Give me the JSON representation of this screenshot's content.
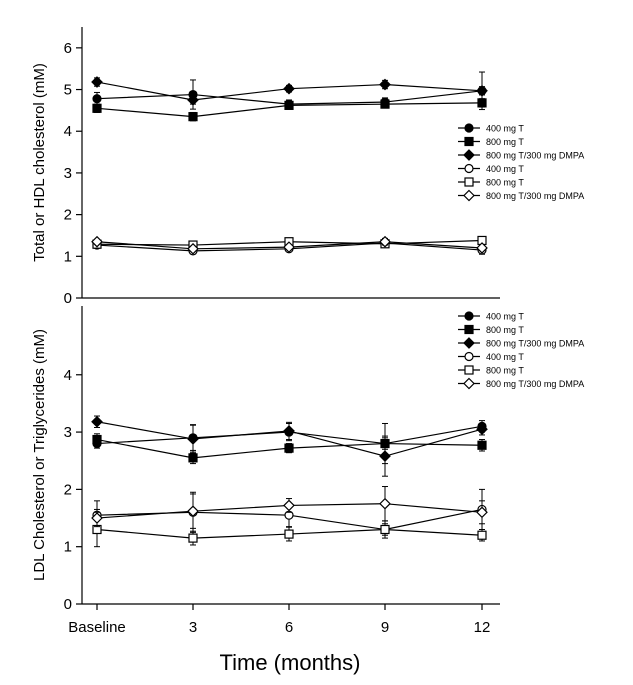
{
  "chart_data": [
    {
      "type": "line",
      "panel": "top",
      "ylabel": "Total or HDL cholesterol (mM)",
      "xlabel": "",
      "ylim": [
        0,
        6.5
      ],
      "y_ticks": [
        0,
        1,
        2,
        3,
        4,
        5,
        6
      ],
      "categories": [
        "Baseline",
        "3",
        "6",
        "9",
        "12"
      ],
      "series": [
        {
          "name": "400  mg T",
          "marker": "circle",
          "fill": "filled",
          "values": [
            4.78,
            4.88,
            4.65,
            4.7,
            4.97
          ],
          "errors": [
            0.15,
            0.35,
            0.1,
            0.1,
            0.45
          ]
        },
        {
          "name": "800 mg T",
          "marker": "square",
          "fill": "filled",
          "values": [
            4.55,
            4.35,
            4.62,
            4.65,
            4.68
          ],
          "errors": [
            0.1,
            0.1,
            0.08,
            0.08,
            0.1
          ]
        },
        {
          "name": "800 mg T/300 mg DMPA",
          "marker": "diamond",
          "fill": "filled",
          "values": [
            5.18,
            4.75,
            5.02,
            5.12,
            4.97
          ],
          "errors": [
            0.1,
            0.1,
            0.08,
            0.1,
            0.1
          ]
        },
        {
          "name": "400 mg T",
          "marker": "circle",
          "fill": "open",
          "values": [
            1.27,
            1.13,
            1.18,
            1.32,
            1.15
          ],
          "errors": [
            0.05,
            0.05,
            0.05,
            0.08,
            0.1
          ]
        },
        {
          "name": "800 mg T",
          "marker": "square",
          "fill": "open",
          "values": [
            1.29,
            1.27,
            1.35,
            1.3,
            1.38
          ],
          "errors": [
            0.05,
            0.05,
            0.05,
            0.08,
            0.05
          ]
        },
        {
          "name": "800 mg T/300 mg DMPA",
          "marker": "diamond",
          "fill": "open",
          "values": [
            1.35,
            1.18,
            1.22,
            1.35,
            1.2
          ],
          "errors": [
            0.05,
            0.05,
            0.05,
            0.08,
            0.05
          ]
        }
      ],
      "legend_position": "right"
    },
    {
      "type": "line",
      "panel": "bottom",
      "ylabel": "LDL Cholesterol or Triglycerides (mM)",
      "xlabel": "Time (months)",
      "ylim": [
        0,
        5.2
      ],
      "y_ticks": [
        0,
        1,
        2,
        3,
        4
      ],
      "categories": [
        "Baseline",
        "3",
        "6",
        "9",
        "12"
      ],
      "series": [
        {
          "name": "400  mg T",
          "marker": "circle",
          "fill": "filled",
          "values": [
            2.8,
            2.9,
            3.0,
            2.8,
            3.1
          ],
          "errors": [
            0.08,
            0.22,
            0.15,
            0.35,
            0.1
          ]
        },
        {
          "name": "800 mg T",
          "marker": "square",
          "fill": "filled",
          "values": [
            2.87,
            2.55,
            2.72,
            2.8,
            2.77
          ],
          "errors": [
            0.1,
            0.1,
            0.08,
            0.1,
            0.1
          ]
        },
        {
          "name": "800 mg T/300 mg DMPA",
          "marker": "diamond",
          "fill": "filled",
          "values": [
            3.18,
            2.88,
            3.02,
            2.58,
            3.05
          ],
          "errors": [
            0.1,
            0.25,
            0.15,
            0.35,
            0.1
          ]
        },
        {
          "name": "400 mg T",
          "marker": "circle",
          "fill": "open",
          "values": [
            1.55,
            1.6,
            1.55,
            1.3,
            1.65
          ],
          "errors": [
            0.25,
            0.35,
            0.2,
            0.15,
            0.35
          ]
        },
        {
          "name": "800 mg T",
          "marker": "square",
          "fill": "open",
          "values": [
            1.3,
            1.15,
            1.22,
            1.3,
            1.2
          ],
          "errors": [
            0.3,
            0.12,
            0.12,
            0.1,
            0.1
          ]
        },
        {
          "name": "800 mg T/300 mg DMPA",
          "marker": "diamond",
          "fill": "open",
          "values": [
            1.5,
            1.62,
            1.72,
            1.75,
            1.6
          ],
          "errors": [
            0.15,
            0.3,
            0.12,
            0.3,
            0.2
          ]
        }
      ],
      "legend_position": "top-right"
    }
  ]
}
